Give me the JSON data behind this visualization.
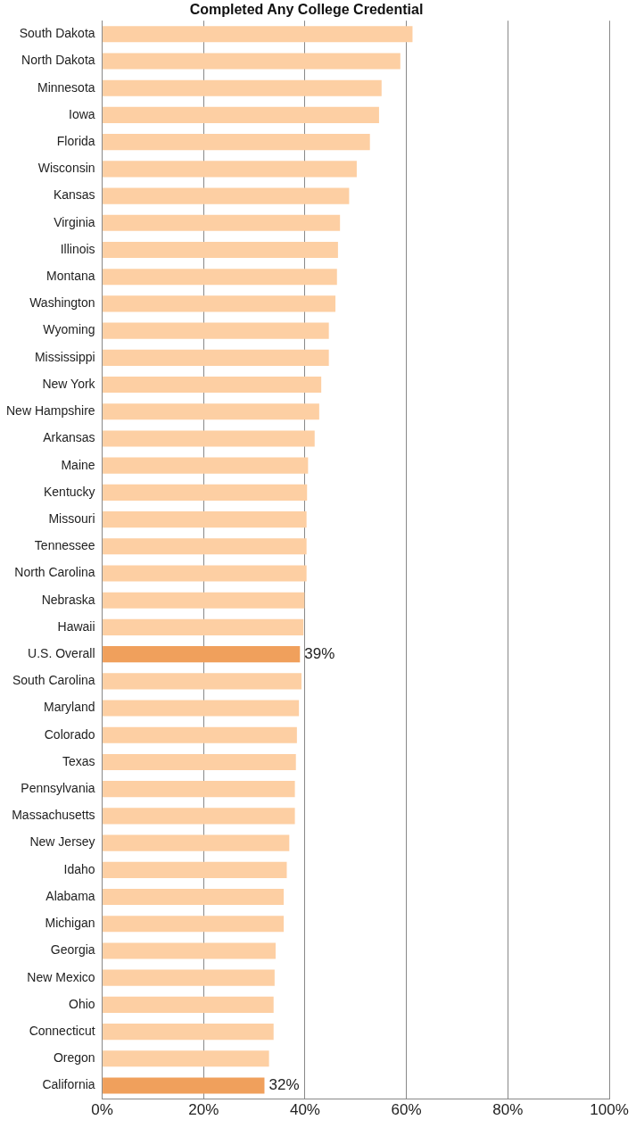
{
  "chart_data": {
    "type": "bar",
    "orientation": "horizontal",
    "title": "Completed Any College Credential",
    "categories": [
      "South Dakota",
      "North Dakota",
      "Minnesota",
      "Iowa",
      "Florida",
      "Wisconsin",
      "Kansas",
      "Virginia",
      "Illinois",
      "Montana",
      "Washington",
      "Wyoming",
      "Mississippi",
      "New York",
      "New Hampshire",
      "Arkansas",
      "Maine",
      "Kentucky",
      "Missouri",
      "Tennessee",
      "North Carolina",
      "Nebraska",
      "Hawaii",
      "U.S. Overall",
      "South Carolina",
      "Maryland",
      "Colorado",
      "Texas",
      "Pennsylvania",
      "Massachusetts",
      "New Jersey",
      "Idaho",
      "Alabama",
      "Michigan",
      "Georgia",
      "New Mexico",
      "Ohio",
      "Connecticut",
      "Oregon",
      "California"
    ],
    "values": [
      61.2,
      58.8,
      55.1,
      54.6,
      52.8,
      50.2,
      48.7,
      46.9,
      46.5,
      46.3,
      46.0,
      44.7,
      44.7,
      43.2,
      42.8,
      41.9,
      40.6,
      40.4,
      40.3,
      40.3,
      40.3,
      39.9,
      39.7,
      39,
      39.3,
      38.8,
      38.4,
      38.2,
      38.0,
      38.0,
      36.9,
      36.4,
      35.8,
      35.8,
      34.2,
      34.0,
      33.8,
      33.8,
      32.9,
      32
    ],
    "colors": [
      "#fdcfa3",
      "#fdcfa3",
      "#fdcfa3",
      "#fdcfa3",
      "#fdcfa3",
      "#fdcfa3",
      "#fdcfa3",
      "#fdcfa3",
      "#fdcfa3",
      "#fdcfa3",
      "#fdcfa3",
      "#fdcfa3",
      "#fdcfa3",
      "#fdcfa3",
      "#fdcfa3",
      "#fdcfa3",
      "#fdcfa3",
      "#fdcfa3",
      "#fdcfa3",
      "#fdcfa3",
      "#fdcfa3",
      "#fdcfa3",
      "#fdcfa3",
      "#f0a05c",
      "#fdcfa3",
      "#fdcfa3",
      "#fdcfa3",
      "#fdcfa3",
      "#fdcfa3",
      "#fdcfa3",
      "#fdcfa3",
      "#fdcfa3",
      "#fdcfa3",
      "#fdcfa3",
      "#fdcfa3",
      "#fdcfa3",
      "#fdcfa3",
      "#fdcfa3",
      "#fdcfa3",
      "#f0a05c"
    ],
    "value_labels": [
      null,
      null,
      null,
      null,
      null,
      null,
      null,
      null,
      null,
      null,
      null,
      null,
      null,
      null,
      null,
      null,
      null,
      null,
      null,
      null,
      null,
      null,
      null,
      "39%",
      null,
      null,
      null,
      null,
      null,
      null,
      null,
      null,
      null,
      null,
      null,
      null,
      null,
      null,
      null,
      "32%"
    ],
    "xlim": [
      0,
      100
    ],
    "xticks": [
      {
        "value": 0,
        "label": "0%"
      },
      {
        "value": 20,
        "label": "20%"
      },
      {
        "value": 40,
        "label": "40%"
      },
      {
        "value": 60,
        "label": "60%"
      },
      {
        "value": 80,
        "label": "80%"
      },
      {
        "value": 100,
        "label": "100%"
      }
    ],
    "grid": "x"
  }
}
